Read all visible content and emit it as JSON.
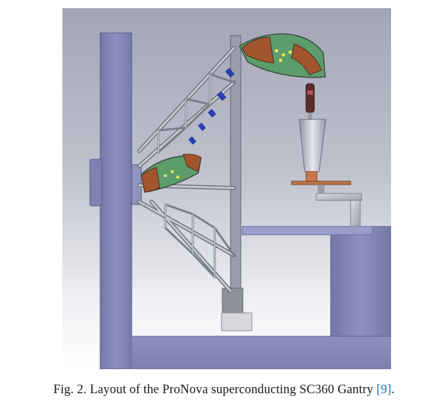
{
  "figure": {
    "label": "Fig. 2.",
    "caption_text": "Layout of the ProNova superconducting SC360 Gantry",
    "reference": "[9]",
    "end_punct": "."
  }
}
